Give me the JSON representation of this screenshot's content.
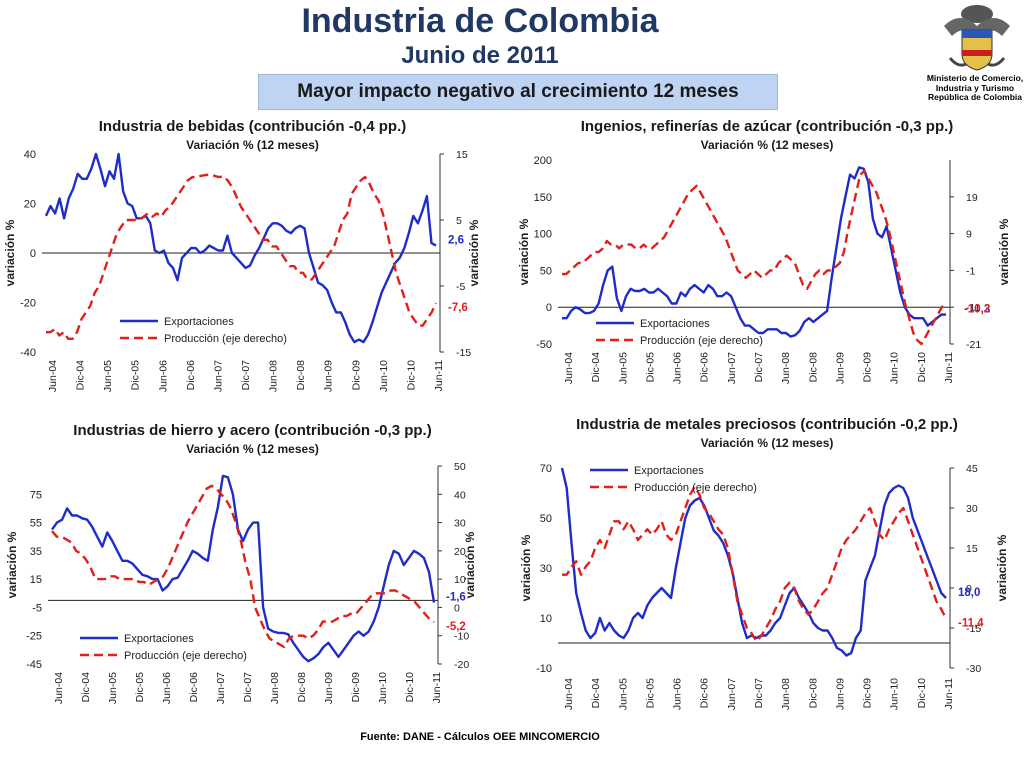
{
  "header": {
    "title": "Industria de Colombia",
    "subtitle": "Junio de 2011",
    "banner": "Mayor impacto negativo al crecimiento 12 meses",
    "ministry": [
      "Ministerio de Comercio,",
      "Industria y Turismo",
      "República de Colombia"
    ]
  },
  "footer": "Fuente: DANE - Cálculos OEE MINCOMERCIO",
  "colors": {
    "exports": "#1f2dc8",
    "production": "#e0201a",
    "title": "#1f3864",
    "banner": "#bfd3f2"
  },
  "chart_data": [
    {
      "type": "line",
      "title": "Industria de bebidas (contribución -0,4 pp.)",
      "subtitle": "Variación % (12 meses)",
      "ylabel_left": "variación %",
      "ylabel_right": "variación %",
      "x_labels": [
        "Jun-04",
        "Dic-04",
        "Jun-05",
        "Dic-05",
        "Jun-06",
        "Dic-06",
        "Jun-07",
        "Dic-07",
        "Jun-08",
        "Dic-08",
        "Jun-09",
        "Dic-09",
        "Jun-10",
        "Dic-10",
        "Jun-11"
      ],
      "left_axis": {
        "min": -40,
        "max": 40,
        "ticks": [
          "-40",
          "-20",
          "0",
          "20",
          "40"
        ]
      },
      "right_axis": {
        "min": -15,
        "max": 15,
        "ticks": [
          "-15",
          "-5",
          "5",
          "15"
        ]
      },
      "legend": "bottom-left",
      "series": [
        {
          "name": "Exportaciones",
          "axis": "left",
          "style": "solid",
          "values": [
            15,
            19,
            16,
            22,
            14,
            22,
            26,
            32,
            30,
            30,
            34,
            40,
            34,
            27,
            33,
            30,
            40,
            25,
            20,
            19,
            14,
            14,
            15,
            12,
            1,
            0,
            1,
            -4,
            -6,
            -11,
            -2,
            0,
            2,
            2,
            0,
            1,
            3,
            2,
            1,
            1,
            7,
            0,
            -2,
            -4,
            -6,
            -5,
            -1,
            2,
            6,
            10,
            12,
            12,
            11,
            9,
            8,
            10,
            11,
            10,
            0,
            -6,
            -12,
            -13,
            -15,
            -20,
            -24,
            -24,
            -28,
            -33,
            -36,
            -35,
            -36,
            -33,
            -28,
            -22,
            -16,
            -12,
            -8,
            -4,
            -2,
            2,
            8,
            15,
            12,
            17,
            23,
            4,
            3
          ],
          "end_label": "2,6"
        },
        {
          "name": "Producción (eje derecho)",
          "axis": "right",
          "style": "dashed",
          "values": [
            -12,
            -12,
            -11.5,
            -12.5,
            -12,
            -13,
            -13,
            -12,
            -10,
            -9,
            -8,
            -6,
            -5,
            -3,
            -1,
            1,
            3,
            4,
            5,
            5,
            5,
            5,
            5.5,
            6,
            5.5,
            6,
            5.5,
            6.5,
            7,
            8,
            9,
            10,
            11,
            11.5,
            11.5,
            11.7,
            11.8,
            11.9,
            11.7,
            11.5,
            11.6,
            11,
            10,
            8.5,
            7,
            6,
            5,
            4,
            3,
            2,
            2,
            1,
            1,
            0,
            -1,
            -2,
            -2,
            -3,
            -3,
            -4,
            -4,
            -3,
            -2,
            -1,
            0,
            1,
            3,
            5,
            6,
            9,
            10,
            11,
            11.5,
            10.5,
            9,
            8,
            6,
            3,
            0,
            -3,
            -5,
            -7,
            -9,
            -10,
            -11,
            -11,
            -10,
            -9,
            -7.6
          ],
          "end_label": "-7,6"
        }
      ]
    },
    {
      "type": "line",
      "title": "Ingenios, refinerías de azúcar (contribución -0,3 pp.)",
      "subtitle": "Variación % (12 meses)",
      "ylabel_left": "variación %",
      "ylabel_right": "variación %",
      "x_labels": [
        "Jun-04",
        "Dic-04",
        "Jun-05",
        "Dic-05",
        "Jun-06",
        "Dic-06",
        "Jun-07",
        "Dic-07",
        "Jun-08",
        "Dic-08",
        "Jun-09",
        "Dic-09",
        "Jun-10",
        "Dic-10",
        "Jun-11"
      ],
      "left_axis": {
        "min": -50,
        "max": 200,
        "ticks": [
          "-50",
          "0",
          "50",
          "100",
          "150",
          "200"
        ]
      },
      "right_axis": {
        "min": -21,
        "max": 29,
        "ticks": [
          "-21",
          "-11",
          "-1",
          "9",
          "19"
        ]
      },
      "legend": "bottom-left",
      "series": [
        {
          "name": "Exportaciones",
          "axis": "left",
          "style": "solid",
          "values": [
            -15,
            -15,
            -5,
            0,
            -3,
            -8,
            -8,
            -5,
            5,
            30,
            50,
            55,
            12,
            -5,
            15,
            25,
            22,
            22,
            25,
            20,
            20,
            25,
            20,
            15,
            5,
            5,
            20,
            15,
            25,
            30,
            25,
            20,
            30,
            25,
            15,
            15,
            20,
            15,
            0,
            -15,
            -25,
            -25,
            -30,
            -35,
            -35,
            -30,
            -30,
            -30,
            -35,
            -35,
            -40,
            -38,
            -32,
            -20,
            -15,
            -20,
            -15,
            -10,
            -5,
            40,
            80,
            120,
            150,
            180,
            175,
            190,
            188,
            170,
            120,
            100,
            95,
            110,
            80,
            50,
            20,
            0,
            -10,
            -15,
            -15,
            -15,
            -25,
            -20,
            -15,
            -10,
            -10
          ],
          "end_label": "-10,3"
        },
        {
          "name": "Producción (eje derecho)",
          "axis": "right",
          "style": "dashed",
          "values": [
            -2,
            -2,
            -1,
            0,
            1,
            1,
            2,
            3,
            4,
            4,
            5,
            7,
            6,
            6,
            5,
            6,
            6,
            6,
            5,
            5,
            6,
            5,
            5,
            6,
            7,
            8,
            10,
            12,
            14,
            16,
            18,
            20,
            21,
            22,
            20,
            18,
            16,
            14,
            12,
            10,
            8,
            5,
            2,
            -1,
            -2,
            -3,
            -2,
            -1,
            -2,
            -3,
            -2,
            -1,
            -1,
            1,
            2,
            3,
            2,
            1,
            -2,
            -5,
            -6,
            -4,
            -2,
            -1,
            -2,
            -1,
            -1,
            0,
            1,
            4,
            10,
            15,
            20,
            25,
            26,
            24,
            22,
            20,
            17,
            14,
            10,
            5,
            0,
            -5,
            -10,
            -14,
            -18,
            -20,
            -21,
            -19,
            -17,
            -15,
            -13,
            -11,
            -10.2
          ],
          "end_label": "-10,2"
        }
      ]
    },
    {
      "type": "line",
      "title": "Industrias de hierro y acero (contribución -0,3 pp.)",
      "subtitle": "Variación % (12 meses)",
      "ylabel_left": "variación %",
      "ylabel_right": "variación %",
      "x_labels": [
        "Jun-04",
        "Dic-04",
        "Jun-05",
        "Dic-05",
        "Jun-06",
        "Dic-06",
        "Jun-07",
        "Dic-07",
        "Jun-08",
        "Dic-08",
        "Jun-09",
        "Dic-09",
        "Jun-10",
        "Dic-10",
        "Jun-11"
      ],
      "left_axis": {
        "min": -45,
        "max": 95,
        "ticks": [
          "-45",
          "-25",
          "-5",
          "15",
          "35",
          "55",
          "75"
        ]
      },
      "right_axis": {
        "min": -20,
        "max": 50,
        "ticks": [
          "-20",
          "-10",
          "0",
          "10",
          "20",
          "30",
          "40",
          "50"
        ]
      },
      "legend": "bottom-left",
      "series": [
        {
          "name": "Exportaciones",
          "axis": "left",
          "style": "solid",
          "values": [
            50,
            55,
            57,
            65,
            60,
            60,
            58,
            57,
            52,
            45,
            38,
            48,
            42,
            35,
            28,
            28,
            26,
            22,
            18,
            17,
            15,
            15,
            7,
            10,
            15,
            16,
            22,
            28,
            35,
            33,
            30,
            28,
            50,
            66,
            88,
            87,
            75,
            50,
            42,
            50,
            55,
            55,
            -5,
            -20,
            -22,
            -23,
            -23,
            -24,
            -30,
            -35,
            -40,
            -43,
            -41,
            -38,
            -33,
            -30,
            -35,
            -40,
            -35,
            -30,
            -25,
            -22,
            -25,
            -22,
            -15,
            -5,
            10,
            25,
            35,
            33,
            25,
            30,
            35,
            33,
            30,
            20,
            -1.6
          ],
          "end_label": "-1,6"
        },
        {
          "name": "Producción (eje derecho)",
          "axis": "right",
          "style": "dashed",
          "values": [
            27,
            25,
            25,
            24,
            23,
            20,
            19,
            17,
            14,
            10,
            10,
            10,
            11,
            11,
            10,
            10,
            10,
            10,
            9,
            9,
            8,
            9,
            10,
            11,
            14,
            18,
            22,
            26,
            30,
            33,
            36,
            39,
            42,
            43,
            42,
            40,
            38,
            35,
            30,
            24,
            16,
            10,
            0,
            -4,
            -8,
            -11,
            -12,
            -13,
            -14,
            -11,
            -10,
            -10,
            -10,
            -11,
            -10,
            -8,
            -5,
            -5,
            -5,
            -4,
            -3,
            -3,
            -2,
            -2,
            0,
            2,
            4,
            5,
            5,
            5,
            6,
            6,
            5,
            4,
            3,
            2,
            0,
            -2,
            -4,
            -5.2
          ],
          "end_label": "-5,2"
        }
      ]
    },
    {
      "type": "line",
      "title": "Industria de metales preciosos (contribución -0,2 pp.)",
      "subtitle": "Variación % (12 meses)",
      "ylabel_left": "variación %",
      "ylabel_right": "variación %",
      "x_labels": [
        "Jun-04",
        "Dic-04",
        "Jun-05",
        "Dic-05",
        "Jun-06",
        "Dic-06",
        "Jun-07",
        "Dic-07",
        "Jun-08",
        "Dic-08",
        "Jun-09",
        "Dic-09",
        "Jun-10",
        "Dic-10",
        "Jun-11"
      ],
      "left_axis": {
        "min": -10,
        "max": 70,
        "ticks": [
          "-10",
          "10",
          "30",
          "50",
          "70"
        ]
      },
      "right_axis": {
        "min": -30,
        "max": 45,
        "ticks": [
          "-30",
          "-15",
          "0",
          "15",
          "30",
          "45"
        ]
      },
      "legend": "top-left",
      "series": [
        {
          "name": "Exportaciones",
          "axis": "left",
          "style": "solid",
          "values": [
            70,
            62,
            40,
            20,
            12,
            5,
            2,
            4,
            10,
            5,
            8,
            5,
            3,
            2,
            5,
            10,
            12,
            10,
            15,
            18,
            20,
            22,
            20,
            18,
            30,
            40,
            50,
            55,
            57,
            58,
            55,
            50,
            45,
            43,
            40,
            35,
            28,
            18,
            8,
            2,
            3,
            2,
            3,
            3,
            5,
            8,
            10,
            15,
            20,
            22,
            18,
            15,
            12,
            8,
            6,
            5,
            5,
            2,
            -2,
            -3,
            -5,
            -4,
            2,
            5,
            25,
            30,
            35,
            45,
            55,
            60,
            62,
            63,
            62,
            58,
            50,
            45,
            40,
            35,
            30,
            25,
            20,
            18.0
          ],
          "end_label": "18,0"
        },
        {
          "name": "Producción (eje derecho)",
          "axis": "right",
          "style": "dashed",
          "values": [
            5,
            5,
            8,
            10,
            5,
            8,
            10,
            15,
            18,
            15,
            20,
            25,
            25,
            22,
            25,
            22,
            18,
            20,
            22,
            20,
            22,
            25,
            20,
            18,
            20,
            25,
            30,
            35,
            38,
            35,
            30,
            28,
            25,
            22,
            20,
            15,
            5,
            -5,
            -10,
            -15,
            -17,
            -20,
            -18,
            -15,
            -12,
            -8,
            -5,
            0,
            2,
            0,
            -5,
            -8,
            -10,
            -8,
            -5,
            -2,
            0,
            5,
            10,
            15,
            18,
            20,
            22,
            25,
            28,
            30,
            25,
            20,
            18,
            22,
            25,
            28,
            30,
            25,
            20,
            15,
            10,
            5,
            0,
            -5,
            -8,
            -11.4
          ],
          "end_label": "-11,4"
        }
      ]
    }
  ]
}
